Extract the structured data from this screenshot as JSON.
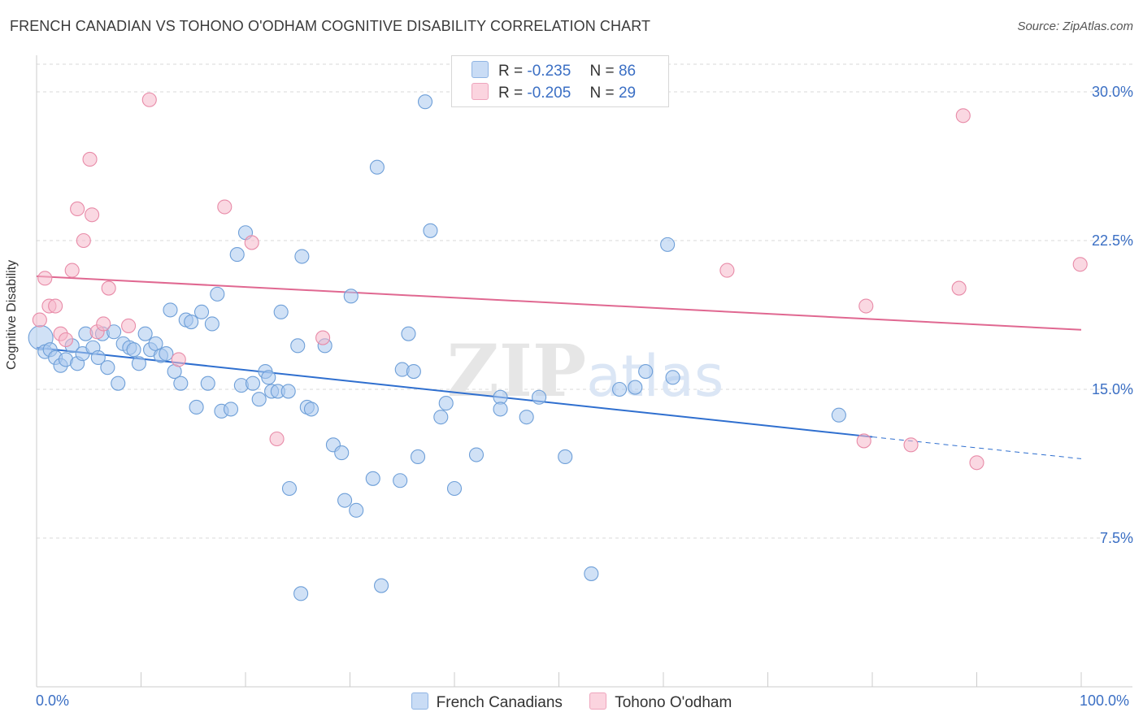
{
  "header": {
    "title": "FRENCH CANADIAN VS TOHONO O'ODHAM COGNITIVE DISABILITY CORRELATION CHART",
    "source": "Source: ZipAtlas.com"
  },
  "legend": {
    "r_label": "R =",
    "n_label": "N =",
    "entries": [
      {
        "r": "-0.235",
        "n": "86",
        "color": "#a9c9ef"
      },
      {
        "r": "-0.205",
        "n": "29",
        "color": "#f6b8cb"
      }
    ]
  },
  "colors": {
    "blue_fill": "#a9c9ef",
    "blue_stroke": "#6e9fd8",
    "blue_line": "#2f6fcf",
    "pink_fill": "#f6b8cb",
    "pink_stroke": "#e88ba8",
    "pink_line": "#e06891",
    "tick_text": "#3b6fc4",
    "grid": "#d9d9d9"
  },
  "chart_data": {
    "type": "scatter",
    "title": "FRENCH CANADIAN VS TOHONO O'ODHAM COGNITIVE DISABILITY CORRELATION CHART",
    "xlabel": "",
    "ylabel": "Cognitive Disability",
    "xlim": [
      0,
      100
    ],
    "ylim": [
      0,
      32.5
    ],
    "x_tick_labels": [
      "0.0%",
      "100.0%"
    ],
    "y_ticks": [
      7.5,
      15.0,
      22.5,
      30.0
    ],
    "y_tick_labels": [
      "7.5%",
      "15.0%",
      "22.5%",
      "30.0%"
    ],
    "grid": "horizontal dashed",
    "watermark": "ZIPatlas",
    "series": [
      {
        "name": "French Canadians",
        "r": -0.235,
        "n": 86,
        "trend": {
          "x0": 0,
          "y0": 17.1,
          "x1": 80,
          "y1": 12.6,
          "dashed_to_x": 100,
          "dashed_to_y": 11.5
        },
        "points": [
          [
            0.4,
            17.6
          ],
          [
            0.8,
            16.9
          ],
          [
            1.3,
            17.0
          ],
          [
            1.8,
            16.6
          ],
          [
            2.3,
            16.2
          ],
          [
            2.8,
            16.5
          ],
          [
            3.4,
            17.2
          ],
          [
            3.9,
            16.3
          ],
          [
            4.4,
            16.8
          ],
          [
            4.7,
            17.8
          ],
          [
            5.4,
            17.1
          ],
          [
            5.9,
            16.6
          ],
          [
            6.3,
            17.8
          ],
          [
            6.8,
            16.1
          ],
          [
            7.4,
            17.9
          ],
          [
            7.8,
            15.3
          ],
          [
            8.3,
            17.3
          ],
          [
            8.9,
            17.1
          ],
          [
            9.3,
            17.0
          ],
          [
            9.8,
            16.3
          ],
          [
            10.4,
            17.8
          ],
          [
            10.9,
            17.0
          ],
          [
            11.4,
            17.3
          ],
          [
            11.9,
            16.7
          ],
          [
            12.4,
            16.8
          ],
          [
            12.8,
            19.0
          ],
          [
            13.2,
            15.9
          ],
          [
            13.8,
            15.3
          ],
          [
            14.3,
            18.5
          ],
          [
            14.8,
            18.4
          ],
          [
            15.3,
            14.1
          ],
          [
            15.8,
            18.9
          ],
          [
            16.4,
            15.3
          ],
          [
            16.8,
            18.3
          ],
          [
            17.3,
            19.8
          ],
          [
            17.7,
            13.9
          ],
          [
            18.6,
            14.0
          ],
          [
            19.2,
            21.8
          ],
          [
            19.6,
            15.2
          ],
          [
            20.0,
            22.9
          ],
          [
            20.7,
            15.3
          ],
          [
            21.3,
            14.5
          ],
          [
            21.9,
            15.9
          ],
          [
            22.2,
            15.6
          ],
          [
            22.5,
            14.9
          ],
          [
            23.1,
            14.9
          ],
          [
            23.4,
            18.9
          ],
          [
            24.1,
            14.9
          ],
          [
            25.0,
            17.2
          ],
          [
            25.4,
            21.7
          ],
          [
            25.9,
            14.1
          ],
          [
            26.3,
            14.0
          ],
          [
            27.6,
            17.2
          ],
          [
            25.3,
            4.7
          ],
          [
            24.2,
            10.0
          ],
          [
            28.4,
            12.2
          ],
          [
            29.2,
            11.8
          ],
          [
            29.5,
            9.4
          ],
          [
            30.1,
            19.7
          ],
          [
            30.6,
            8.9
          ],
          [
            32.2,
            10.5
          ],
          [
            32.6,
            26.2
          ],
          [
            33.0,
            5.1
          ],
          [
            34.8,
            10.4
          ],
          [
            35.0,
            16.0
          ],
          [
            35.6,
            17.8
          ],
          [
            36.1,
            15.9
          ],
          [
            36.5,
            11.6
          ],
          [
            37.2,
            29.5
          ],
          [
            37.7,
            23.0
          ],
          [
            38.7,
            13.6
          ],
          [
            39.2,
            14.3
          ],
          [
            40.0,
            10.0
          ],
          [
            42.1,
            11.7
          ],
          [
            44.4,
            14.6
          ],
          [
            44.4,
            14.0
          ],
          [
            46.9,
            13.6
          ],
          [
            48.1,
            14.6
          ],
          [
            50.6,
            11.6
          ],
          [
            53.1,
            5.7
          ],
          [
            55.8,
            15.0
          ],
          [
            57.3,
            15.1
          ],
          [
            58.3,
            15.9
          ],
          [
            60.9,
            15.6
          ],
          [
            60.4,
            22.3
          ],
          [
            76.8,
            13.7
          ]
        ]
      },
      {
        "name": "Tohono O'odham",
        "r": -0.205,
        "n": 29,
        "trend": {
          "x0": 0,
          "y0": 20.7,
          "x1": 100,
          "y1": 18.0
        },
        "points": [
          [
            0.3,
            18.5
          ],
          [
            0.8,
            20.6
          ],
          [
            1.2,
            19.2
          ],
          [
            1.8,
            19.2
          ],
          [
            2.3,
            17.8
          ],
          [
            2.8,
            17.5
          ],
          [
            3.4,
            21.0
          ],
          [
            3.9,
            24.1
          ],
          [
            4.5,
            22.5
          ],
          [
            5.1,
            26.6
          ],
          [
            5.3,
            23.8
          ],
          [
            5.8,
            17.9
          ],
          [
            6.4,
            18.3
          ],
          [
            6.9,
            20.1
          ],
          [
            8.8,
            18.2
          ],
          [
            10.8,
            29.6
          ],
          [
            13.6,
            16.5
          ],
          [
            18.0,
            24.2
          ],
          [
            20.6,
            22.4
          ],
          [
            23.0,
            12.5
          ],
          [
            27.4,
            17.6
          ],
          [
            66.1,
            21.0
          ],
          [
            79.2,
            12.4
          ],
          [
            79.4,
            19.2
          ],
          [
            83.7,
            12.2
          ],
          [
            88.3,
            20.1
          ],
          [
            88.7,
            28.8
          ],
          [
            90.0,
            11.3
          ],
          [
            99.9,
            21.3
          ]
        ]
      }
    ]
  }
}
